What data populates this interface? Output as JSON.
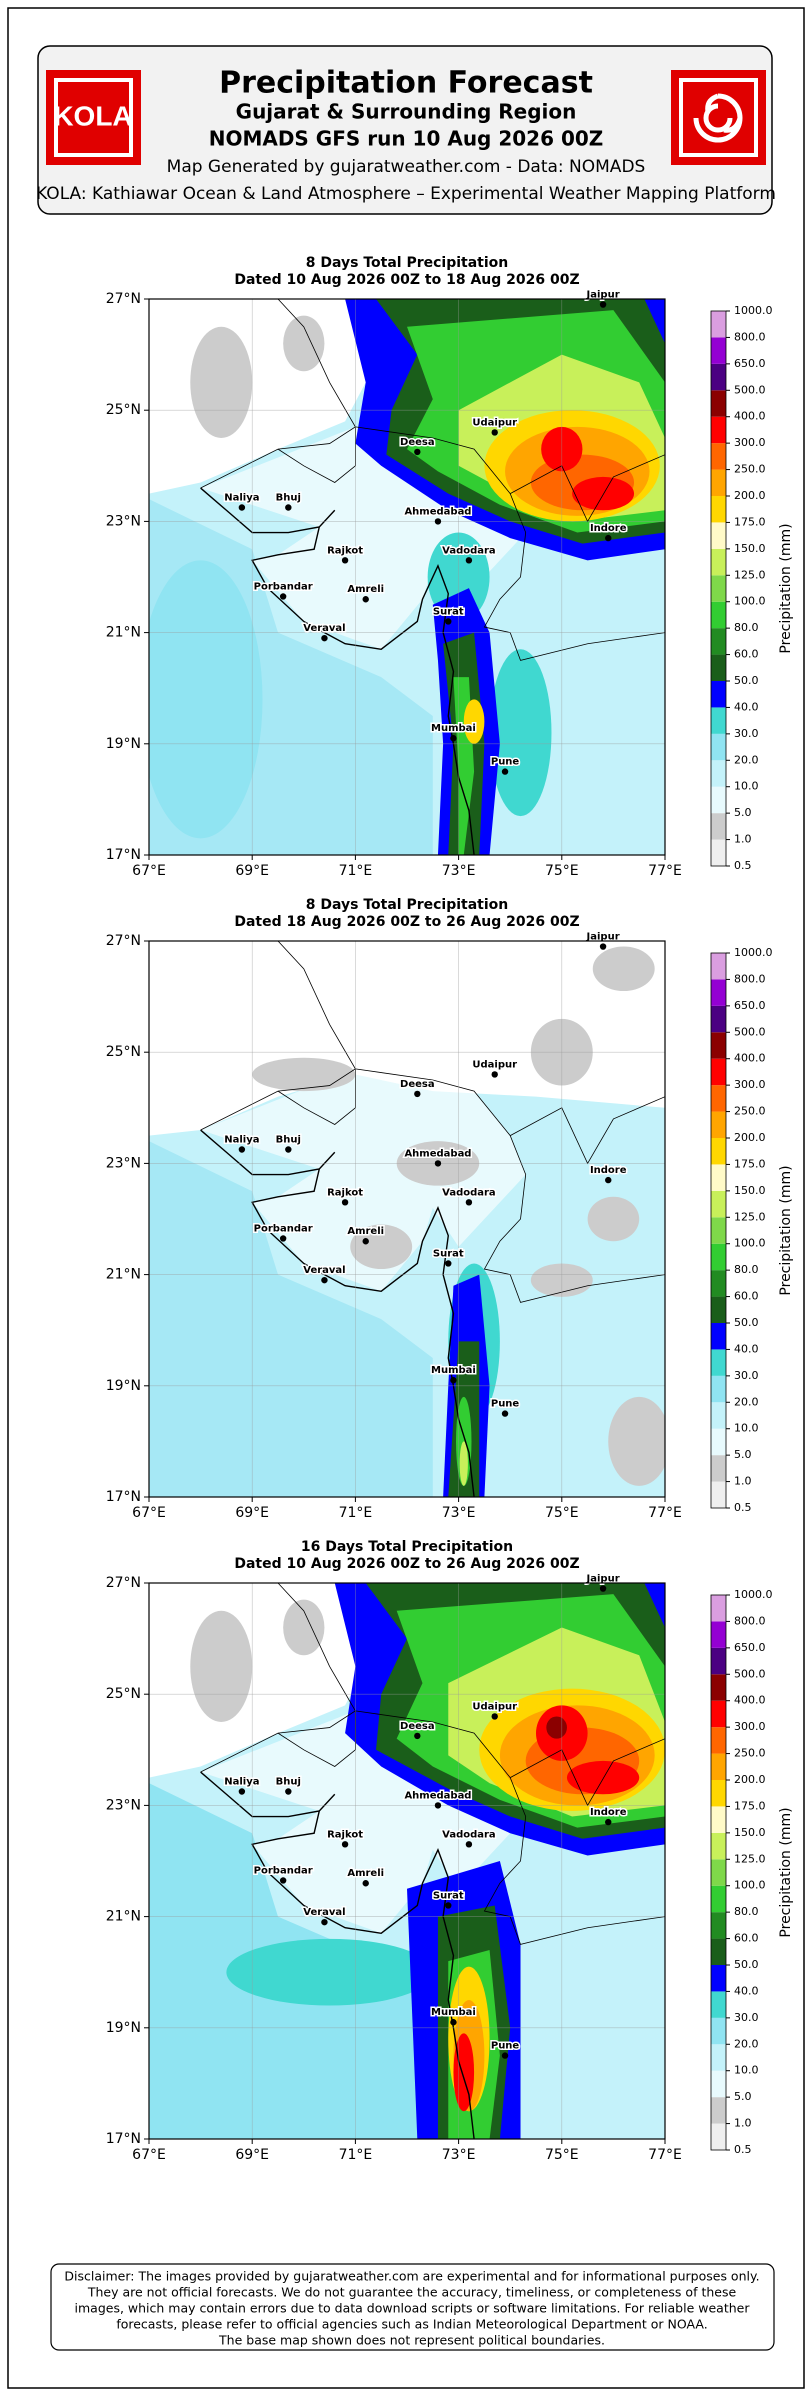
{
  "header": {
    "logo": "KOLA",
    "title": "Precipitation Forecast",
    "subtitle": "Gujarat & Surrounding Region",
    "run": "NOMADS GFS run 10 Aug 2026 00Z",
    "credit": "Map Generated by gujaratweather.com - Data: NOMADS",
    "platform": "KOLA: Kathiawar Ocean & Land Atmosphere – Experimental Weather Mapping Platform"
  },
  "chart_data": [
    {
      "type": "map",
      "title": "8 Days Total Precipitation",
      "subtitle": "Dated 10 Aug 2026 00Z to 18 Aug 2026 00Z",
      "xlim": [
        67,
        77
      ],
      "ylim": [
        17,
        27
      ],
      "grid": true,
      "xticks": [
        {
          "value": 67,
          "label": "67°E"
        },
        {
          "value": 69,
          "label": "69°E"
        },
        {
          "value": 71,
          "label": "71°E"
        },
        {
          "value": 73,
          "label": "73°E"
        },
        {
          "value": 75,
          "label": "75°E"
        },
        {
          "value": 77,
          "label": "77°E"
        }
      ],
      "yticks": [
        {
          "value": 17,
          "label": "17°N"
        },
        {
          "value": 19,
          "label": "19°N"
        },
        {
          "value": 21,
          "label": "21°N"
        },
        {
          "value": 23,
          "label": "23°N"
        },
        {
          "value": 25,
          "label": "25°N"
        },
        {
          "value": 27,
          "label": "27°N"
        }
      ]
    },
    {
      "type": "map",
      "title": "8 Days Total Precipitation",
      "subtitle": "Dated 18 Aug 2026 00Z to 26 Aug 2026 00Z",
      "xlim": [
        67,
        77
      ],
      "ylim": [
        17,
        27
      ],
      "grid": true,
      "xticks": [
        {
          "value": 67,
          "label": "67°E"
        },
        {
          "value": 69,
          "label": "69°E"
        },
        {
          "value": 71,
          "label": "71°E"
        },
        {
          "value": 73,
          "label": "73°E"
        },
        {
          "value": 75,
          "label": "75°E"
        },
        {
          "value": 77,
          "label": "77°E"
        }
      ],
      "yticks": [
        {
          "value": 17,
          "label": "17°N"
        },
        {
          "value": 19,
          "label": "19°N"
        },
        {
          "value": 21,
          "label": "21°N"
        },
        {
          "value": 23,
          "label": "23°N"
        },
        {
          "value": 25,
          "label": "25°N"
        },
        {
          "value": 27,
          "label": "27°N"
        }
      ]
    },
    {
      "type": "map",
      "title": "16 Days Total Precipitation",
      "subtitle": "Dated 10 Aug 2026 00Z to 26 Aug 2026 00Z",
      "xlim": [
        67,
        77
      ],
      "ylim": [
        17,
        27
      ],
      "grid": true,
      "xticks": [
        {
          "value": 67,
          "label": "67°E"
        },
        {
          "value": 69,
          "label": "69°E"
        },
        {
          "value": 71,
          "label": "71°E"
        },
        {
          "value": 73,
          "label": "73°E"
        },
        {
          "value": 75,
          "label": "75°E"
        },
        {
          "value": 77,
          "label": "77°E"
        }
      ],
      "yticks": [
        {
          "value": 17,
          "label": "17°N"
        },
        {
          "value": 19,
          "label": "19°N"
        },
        {
          "value": 21,
          "label": "21°N"
        },
        {
          "value": 23,
          "label": "23°N"
        },
        {
          "value": 25,
          "label": "25°N"
        },
        {
          "value": 27,
          "label": "27°N"
        }
      ]
    }
  ],
  "colorbar": {
    "label": "Precipitation (mm)",
    "levels": [
      0.5,
      {
        "value": 1,
        "label": "1.0"
      },
      {
        "value": 5,
        "label": "5.0"
      },
      {
        "value": 10,
        "label": "10.0"
      },
      {
        "value": 20,
        "label": "20.0"
      },
      {
        "value": 30,
        "label": "30.0"
      },
      {
        "value": 40,
        "label": "40.0"
      },
      {
        "value": 50,
        "label": "50.0"
      },
      {
        "value": 60,
        "label": "60.0"
      },
      {
        "value": 80,
        "label": "80.0"
      },
      {
        "value": 100,
        "label": "100.0"
      },
      {
        "value": 125,
        "label": "125.0"
      },
      {
        "value": 150,
        "label": "150.0"
      },
      {
        "value": 175,
        "label": "175.0"
      },
      {
        "value": 200,
        "label": "200.0"
      },
      {
        "value": 250,
        "label": "250.0"
      },
      {
        "value": 300,
        "label": "300.0"
      },
      {
        "value": 400,
        "label": "400.0"
      },
      {
        "value": 500,
        "label": "500.0"
      },
      {
        "value": 650,
        "label": "650.0"
      },
      {
        "value": 800,
        "label": "800.0"
      },
      {
        "value": 1000,
        "label": "1000.0"
      }
    ],
    "colors": [
      "#efefef",
      "#cccccc",
      "#e8fafd",
      "#c4f2fa",
      "#90e4f2",
      "#40d8d0",
      "#0000ff",
      "#1a5e1a",
      "#228b22",
      "#32cd32",
      "#7fd84a",
      "#c8f05a",
      "#fffac8",
      "#ffd700",
      "#ffa500",
      "#ff6600",
      "#ff0000",
      "#8b0000",
      "#4b0082",
      "#9400d3",
      "#da9ee0"
    ]
  },
  "cities": [
    {
      "name": "Jaipur",
      "lon": 75.8,
      "lat": 26.9
    },
    {
      "name": "Udaipur",
      "lon": 73.7,
      "lat": 24.6
    },
    {
      "name": "Deesa",
      "lon": 72.2,
      "lat": 24.25
    },
    {
      "name": "Ahmedabad",
      "lon": 72.6,
      "lat": 23.0
    },
    {
      "name": "Naliya",
      "lon": 68.8,
      "lat": 23.25
    },
    {
      "name": "Bhuj",
      "lon": 69.7,
      "lat": 23.25
    },
    {
      "name": "Rajkot",
      "lon": 70.8,
      "lat": 22.3
    },
    {
      "name": "Vadodara",
      "lon": 73.2,
      "lat": 22.3
    },
    {
      "name": "Indore",
      "lon": 75.9,
      "lat": 22.7
    },
    {
      "name": "Porbandar",
      "lon": 69.6,
      "lat": 21.65
    },
    {
      "name": "Amreli",
      "lon": 71.2,
      "lat": 21.6
    },
    {
      "name": "Veraval",
      "lon": 70.4,
      "lat": 20.9
    },
    {
      "name": "Surat",
      "lon": 72.8,
      "lat": 21.2
    },
    {
      "name": "Mumbai",
      "lon": 72.9,
      "lat": 19.1
    },
    {
      "name": "Pune",
      "lon": 73.9,
      "lat": 18.5
    }
  ],
  "disclaimer": [
    "Disclaimer: The images provided by gujaratweather.com are experimental and for informational purposes only.",
    "They are not official forecasts. We do not guarantee the accuracy, timeliness, or completeness of these",
    "images, which may contain errors due to data download scripts or software limitations. For reliable weather",
    "forecasts, please refer to official agencies such as Indian Meteorological Department or NOAA.",
    "The base map shown does not represent political boundaries."
  ]
}
